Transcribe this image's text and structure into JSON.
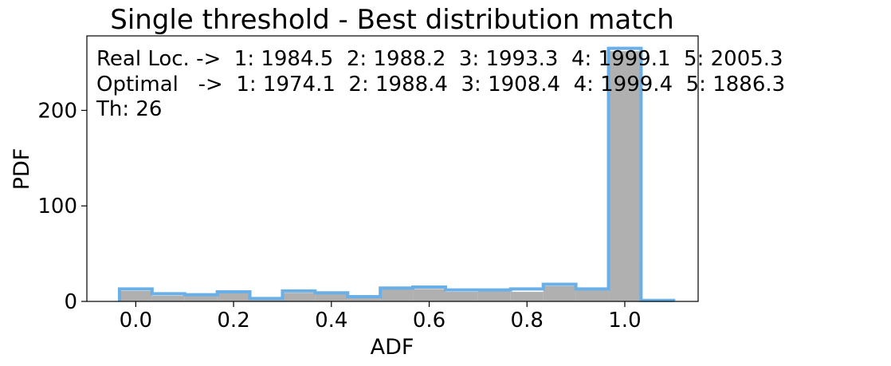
{
  "chart_data": {
    "type": "bar",
    "title": "Single threshold - Best distribution match",
    "xlabel": "ADF",
    "ylabel": "PDF",
    "xlim": [
      -0.1,
      1.15
    ],
    "ylim": [
      0,
      278
    ],
    "xticks": [
      0.0,
      0.2,
      0.4,
      0.6,
      0.8,
      1.0
    ],
    "xtick_labels": [
      "0.0",
      "0.2",
      "0.4",
      "0.6",
      "0.8",
      "1.0"
    ],
    "yticks": [
      0,
      100,
      200
    ],
    "ytick_labels": [
      "0",
      "100",
      "200"
    ],
    "bin_width": 0.0667,
    "grey_values": [
      11,
      6,
      6,
      9,
      3,
      9,
      8,
      4,
      13,
      13,
      10,
      11,
      10,
      16,
      12,
      262,
      0
    ],
    "blue_values": [
      13,
      8,
      7,
      10,
      3,
      11,
      9,
      5,
      14,
      15,
      12,
      12,
      13,
      18,
      13,
      265,
      1
    ],
    "bin_starts": [
      -0.0333,
      0.0333,
      0.1,
      0.1667,
      0.2333,
      0.3,
      0.3667,
      0.4333,
      0.5,
      0.5667,
      0.6333,
      0.7,
      0.7667,
      0.8333,
      0.9,
      0.9667,
      1.0333
    ],
    "colors": {
      "grey": "#b0b0b0",
      "blue": "#6aafe6"
    },
    "grid": false,
    "annotations": [
      "Real Loc. ->  1: 1984.5  2: 1988.2  3: 1993.3  4: 1999.1  5: 2005.3",
      "Optimal   ->  1: 1974.1  2: 1988.4  3: 1908.4  4: 1999.4  5: 1886.3",
      "Th: 26"
    ]
  }
}
